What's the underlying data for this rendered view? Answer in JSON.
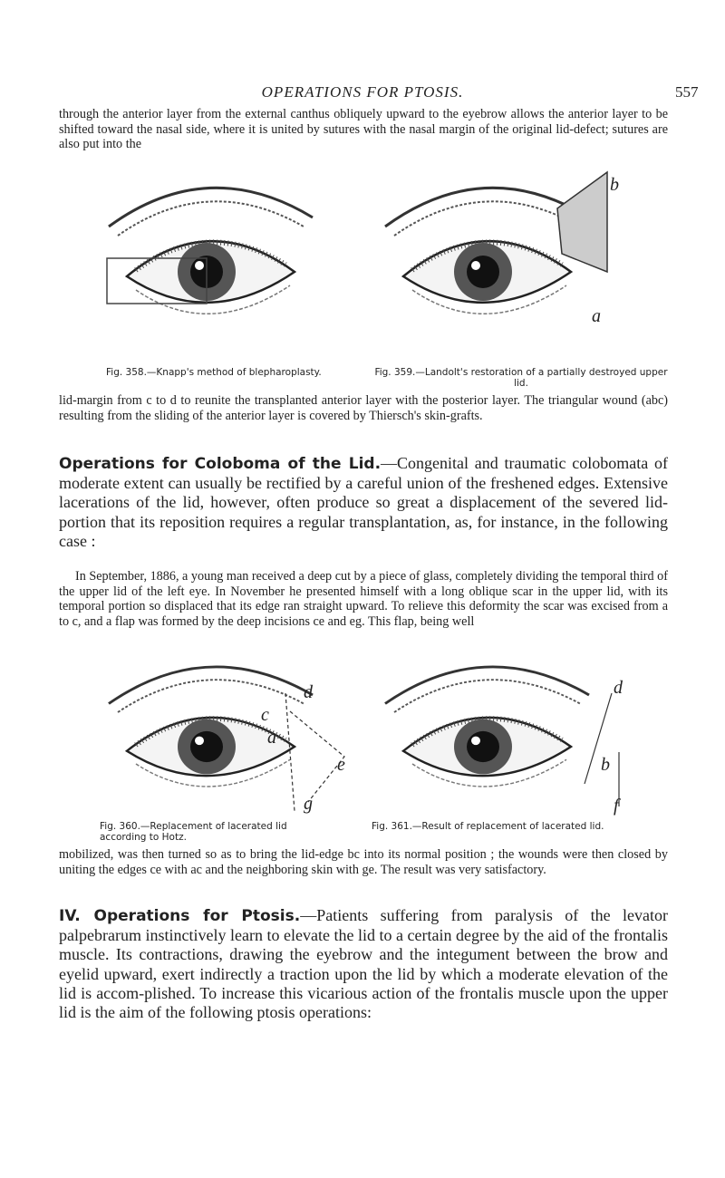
{
  "header": {
    "title": "OPERATIONS FOR PTOSIS.",
    "page_number": "557"
  },
  "paragraphs": [
    "through the anterior layer from the external canthus obliquely upward to the eyebrow allows the anterior layer to be shifted toward the nasal side, where it is united by sutures with the nasal margin of the original lid-defect; sutures are also put into the",
    "lid-margin from c to d to reunite the transplanted anterior layer with the posterior layer. The triangular wound (abc) resulting from the sliding of the anterior layer is covered by Thiersch's skin-grafts."
  ],
  "section1": {
    "heading": "Operations for Coloboma of the Lid.",
    "text": "—Congenital and traumatic colobomata of moderate extent can usually be rectified by a careful union of the freshened edges. Extensive lacerations of the lid, however, often produce so great a displacement of the severed lid-portion that its reposition requires a regular transplantation, as, for instance, in the following case :"
  },
  "case": {
    "text": "In September, 1886, a young man received a deep cut by a piece of glass, completely dividing the temporal third of the upper lid of the left eye. In November he presented himself with a long oblique scar in the upper lid, with its temporal portion so displaced that its edge ran straight upward. To relieve this deformity the scar was excised from a to c, and a flap was formed by the deep incisions ce and eg. This flap, being well",
    "continuation": "mobilized, was then turned so as to bring the lid-edge bc into its normal position ; the wounds were then closed by uniting the edges ce with ac and the neighboring skin with ge. The result was very satisfactory."
  },
  "section2": {
    "heading": "IV. Operations for Ptosis.",
    "text": "—Patients suffering from paralysis of the levator palpebrarum instinctively learn to elevate the lid to a certain degree by the aid of the frontalis muscle. Its contractions, drawing the eyebrow and the integument between the brow and eyelid upward, exert indirectly a traction upon the lid by which a moderate elevation of the lid is accom-plished. To increase this vicarious action of the frontalis muscle upon the upper lid is the aim of the following ptosis operations:"
  },
  "figures": [
    {
      "caption": "Fig. 358.—Knapp's method of blepharoplasty.",
      "labels": []
    },
    {
      "caption": "Fig. 359.—Landolt's restoration of a partially destroyed upper lid.",
      "labels": [
        "b",
        "a"
      ]
    },
    {
      "caption": "Fig. 360.—Replacement of lacerated lid according to Hotz.",
      "labels": [
        "d",
        "c",
        "a",
        "e",
        "g"
      ]
    },
    {
      "caption": "Fig. 361.—Result of replacement of lacerated lid.",
      "labels": [
        "d",
        "b",
        "f"
      ]
    }
  ]
}
